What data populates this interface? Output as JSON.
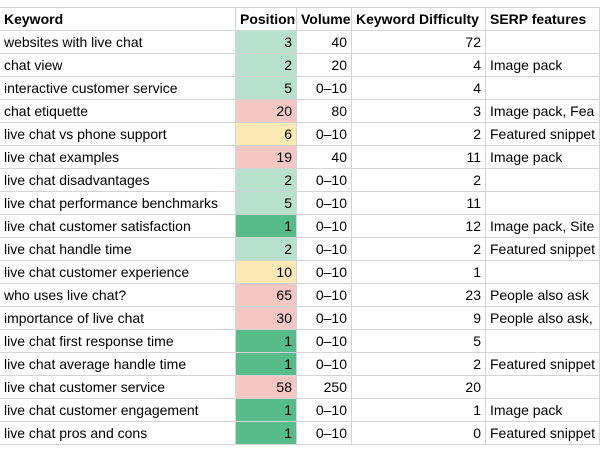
{
  "table": {
    "columns": [
      "Keyword",
      "Position",
      "Volume",
      "Keyword Difficulty",
      "SERP features"
    ],
    "rows": [
      [
        "websites with live chat",
        3,
        40,
        72,
        null
      ],
      [
        "chat view",
        2,
        20,
        4,
        "Image pack"
      ],
      [
        "interactive customer service",
        5,
        "0–10",
        4,
        null
      ],
      [
        "chat etiquette",
        20,
        80,
        3,
        "Image pack, Fea"
      ],
      [
        "live chat vs phone support",
        6,
        "0–10",
        2,
        "Featured snippet"
      ],
      [
        "live chat examples",
        19,
        40,
        11,
        "Image pack"
      ],
      [
        "live chat disadvantages",
        2,
        "0–10",
        2,
        null
      ],
      [
        "live chat performance benchmarks",
        5,
        "0–10",
        11,
        null
      ],
      [
        "live chat customer satisfaction",
        1,
        "0–10",
        12,
        "Image pack, Site"
      ],
      [
        "live chat handle time",
        2,
        "0–10",
        2,
        "Featured snippet"
      ],
      [
        "live chat customer experience",
        10,
        "0–10",
        1,
        null
      ],
      [
        "who uses live chat?",
        65,
        "0–10",
        23,
        "People also ask"
      ],
      [
        "importance of live chat",
        30,
        "0–10",
        9,
        "People also ask,"
      ],
      [
        "live chat first response time",
        1,
        "0–10",
        5,
        null
      ],
      [
        "live chat average handle time",
        1,
        "0–10",
        2,
        "Featured snippet"
      ],
      [
        "live chat customer service",
        58,
        250,
        20,
        null
      ],
      [
        "live chat customer engagement",
        1,
        "0–10",
        1,
        "Image pack"
      ],
      [
        "live chat pros and cons",
        1,
        "0–10",
        0,
        "Featured snippet"
      ]
    ],
    "position_colors": [
      "#b7e1cd",
      "#b7e1cd",
      "#b7e1cd",
      "#f4c7c3",
      "#fce8b2",
      "#f4c7c3",
      "#b7e1cd",
      "#b7e1cd",
      "#57bb8a",
      "#b7e1cd",
      "#fce8b2",
      "#f4c7c3",
      "#f4c7c3",
      "#57bb8a",
      "#57bb8a",
      "#f4c7c3",
      "#57bb8a",
      "#57bb8a"
    ]
  }
}
